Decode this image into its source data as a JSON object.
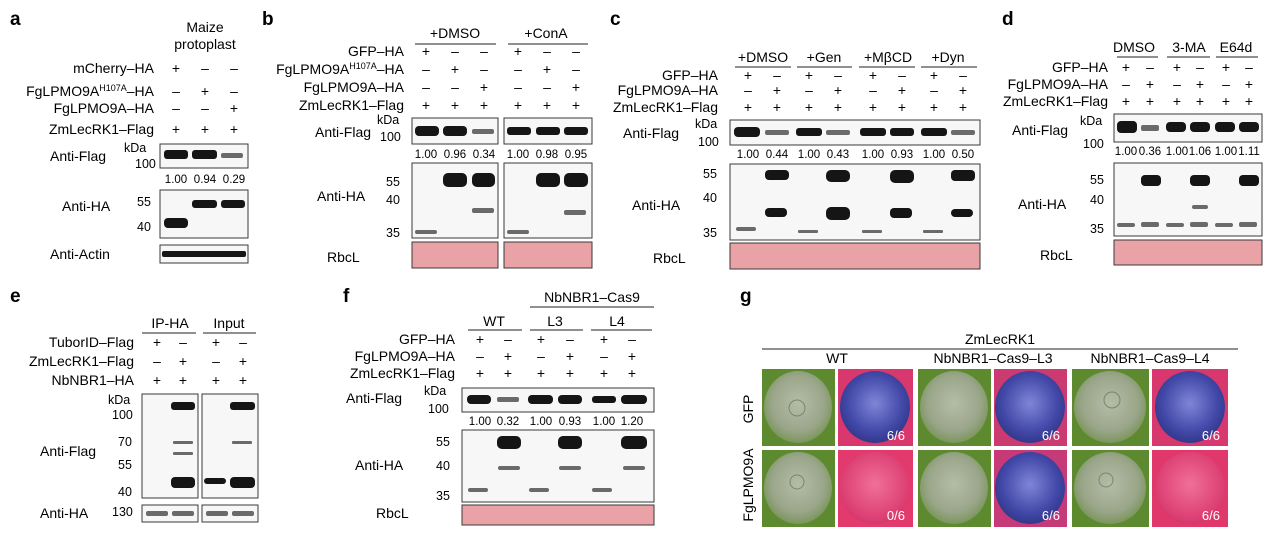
{
  "panels": {
    "a": {
      "letter": "a",
      "header": [
        "Maize",
        "protoplast"
      ],
      "rows": [
        {
          "label": "mCherry–HA",
          "signs": [
            "+",
            "–",
            "–"
          ]
        },
        {
          "label_pre": "FgLPMO9A",
          "label_sup": "H107A",
          "label_post": "–HA",
          "signs": [
            "–",
            "+",
            "–"
          ]
        },
        {
          "label": "FgLPMO9A–HA",
          "signs": [
            "–",
            "–",
            "+"
          ]
        },
        {
          "label": "ZmLecRK1–Flag",
          "signs": [
            "+",
            "+",
            "+"
          ]
        }
      ],
      "blots": [
        "Anti-Flag",
        "Anti-HA",
        "Anti-Actin"
      ],
      "kda": "kDa",
      "mw_flag": [
        "100"
      ],
      "mw_ha": [
        "55",
        "40"
      ],
      "quant": [
        "1.00",
        "0.94",
        "0.29"
      ]
    },
    "b": {
      "letter": "b",
      "groups": [
        "+DMSO",
        "+ConA"
      ],
      "rows": [
        {
          "label": "GFP–HA",
          "signs": [
            "+",
            "–",
            "–",
            "+",
            "–",
            "–"
          ]
        },
        {
          "label_pre": "FgLPMO9A",
          "label_sup": "H107A",
          "label_post": "–HA",
          "signs": [
            "–",
            "+",
            "–",
            "–",
            "+",
            "–"
          ]
        },
        {
          "label": "FgLPMO9A–HA",
          "signs": [
            "–",
            "–",
            "+",
            "–",
            "–",
            "+"
          ]
        },
        {
          "label": "ZmLecRK1–Flag",
          "signs": [
            "+",
            "+",
            "+",
            "+",
            "+",
            "+"
          ]
        }
      ],
      "blots": [
        "Anti-Flag",
        "Anti-HA",
        "RbcL"
      ],
      "kda": "kDa",
      "mw_flag": [
        "100"
      ],
      "mw_ha": [
        "55",
        "40",
        "35"
      ],
      "quant": [
        "1.00",
        "0.96",
        "0.34",
        "1.00",
        "0.98",
        "0.95"
      ]
    },
    "c": {
      "letter": "c",
      "groups": [
        "+DMSO",
        "+Gen",
        "+MβCD",
        "+Dyn"
      ],
      "rows": [
        {
          "label": "GFP–HA",
          "signs": [
            "+",
            "–",
            "+",
            "–",
            "+",
            "–",
            "+",
            "–"
          ]
        },
        {
          "label": "FgLPMO9A–HA",
          "signs": [
            "–",
            "+",
            "–",
            "+",
            "–",
            "+",
            "–",
            "+"
          ]
        },
        {
          "label": "ZmLecRK1–Flag",
          "signs": [
            "+",
            "+",
            "+",
            "+",
            "+",
            "+",
            "+",
            "+"
          ]
        }
      ],
      "blots": [
        "Anti-Flag",
        "Anti-HA",
        "RbcL"
      ],
      "kda": "kDa",
      "mw_flag": [
        "100"
      ],
      "mw_ha": [
        "55",
        "40",
        "35"
      ],
      "quant": [
        "1.00",
        "0.44",
        "1.00",
        "0.43",
        "1.00",
        "0.93",
        "1.00",
        "0.50"
      ]
    },
    "d": {
      "letter": "d",
      "groups": [
        "DMSO",
        "3-MA",
        "E64d"
      ],
      "rows": [
        {
          "label": "GFP–HA",
          "signs": [
            "+",
            "–",
            "+",
            "–",
            "+",
            "–"
          ]
        },
        {
          "label": "FgLPMO9A–HA",
          "signs": [
            "–",
            "+",
            "–",
            "+",
            "–",
            "+"
          ]
        },
        {
          "label": "ZmLecRK1–Flag",
          "signs": [
            "+",
            "+",
            "+",
            "+",
            "+",
            "+"
          ]
        }
      ],
      "blots": [
        "Anti-Flag",
        "Anti-HA",
        "RbcL"
      ],
      "kda": "kDa",
      "mw_flag": [
        "100"
      ],
      "mw_ha": [
        "55",
        "40",
        "35"
      ],
      "quant": [
        "1.00",
        "0.36",
        "1.00",
        "1.06",
        "1.00",
        "1.11"
      ]
    },
    "e": {
      "letter": "e",
      "groups": [
        "IP-HA",
        "Input"
      ],
      "rows": [
        {
          "label": "TuborID–Flag",
          "signs": [
            "+",
            "–",
            "+",
            "–"
          ]
        },
        {
          "label": "ZmLecRK1–Flag",
          "signs": [
            "–",
            "+",
            "–",
            "+"
          ]
        },
        {
          "label": "NbNBR1–HA",
          "signs": [
            "+",
            "+",
            "+",
            "+"
          ]
        }
      ],
      "blots": [
        "Anti-Flag",
        "Anti-HA"
      ],
      "kda": "kDa",
      "mw_flag": [
        "100",
        "70",
        "55",
        "40"
      ],
      "mw_ha": [
        "130"
      ]
    },
    "f": {
      "letter": "f",
      "super_group": "NbNBR1–Cas9",
      "groups": [
        "WT",
        "L3",
        "L4"
      ],
      "rows": [
        {
          "label": "GFP–HA",
          "signs": [
            "+",
            "–",
            "+",
            "–",
            "+",
            "–"
          ]
        },
        {
          "label": "FgLPMO9A–HA",
          "signs": [
            "–",
            "+",
            "–",
            "+",
            "–",
            "+"
          ]
        },
        {
          "label": "ZmLecRK1–Flag",
          "signs": [
            "+",
            "+",
            "+",
            "+",
            "+",
            "+"
          ]
        }
      ],
      "blots": [
        "Anti-Flag",
        "Anti-HA",
        "RbcL"
      ],
      "kda": "kDa",
      "mw_flag": [
        "100"
      ],
      "mw_ha": [
        "55",
        "40",
        "35"
      ],
      "quant": [
        "1.00",
        "0.32",
        "1.00",
        "0.93",
        "1.00",
        "1.20"
      ]
    },
    "g": {
      "letter": "g",
      "title": "ZmLecRK1",
      "columns": [
        "WT",
        "NbNBR1–Cas9–L3",
        "NbNBR1–Cas9–L4"
      ],
      "rows": [
        "GFP",
        "FgLPMO9A"
      ],
      "scores": [
        [
          "6/6",
          "6/6",
          "6/6"
        ],
        [
          "0/6",
          "6/6",
          "6/6"
        ]
      ],
      "colors": {
        "leaf": "#6b8f3a",
        "uv_blue": "#3b3f9e",
        "uv_red": "#d83a6a"
      }
    }
  }
}
